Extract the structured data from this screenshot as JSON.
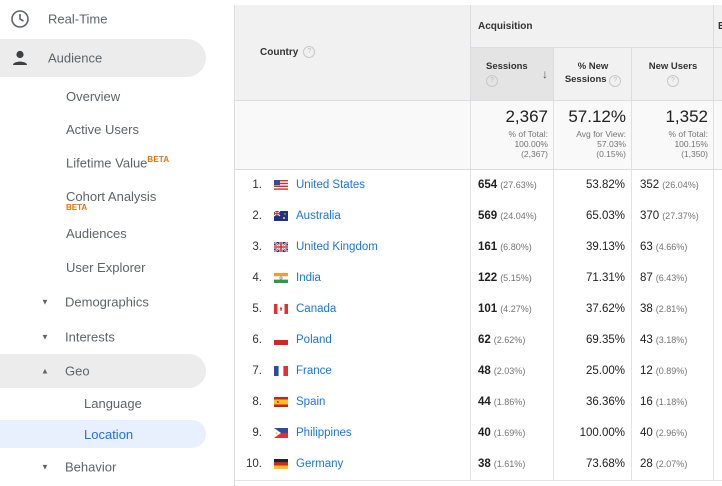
{
  "sidebar": {
    "realtime": "Real-Time",
    "audience": "Audience",
    "overview": "Overview",
    "active_users": "Active Users",
    "lifetime_value": "Lifetime Value",
    "beta": "BETA",
    "cohort": "Cohort Analysis",
    "audiences": "Audiences",
    "user_explorer": "User Explorer",
    "demographics": "Demographics",
    "interests": "Interests",
    "geo": "Geo",
    "language": "Language",
    "location": "Location",
    "behavior": "Behavior"
  },
  "table": {
    "country_header": "Country",
    "acquisition_header": "Acquisition",
    "edge_header": "B",
    "sessions_header": "Sessions",
    "new_sessions_header_1": "% New",
    "new_sessions_header_2": "Sessions",
    "new_users_header": "New Users",
    "totals": {
      "sessions": "2,367",
      "sessions_sub1": "% of Total:",
      "sessions_sub2": "100.00%",
      "sessions_sub3": "(2,367)",
      "new_sessions": "57.12%",
      "new_sessions_sub1": "Avg for View:",
      "new_sessions_sub2": "57.03%",
      "new_sessions_sub3": "(0.15%)",
      "new_users": "1,352",
      "new_users_sub1": "% of Total:",
      "new_users_sub2": "100.15%",
      "new_users_sub3": "(1,350)"
    },
    "rows": [
      {
        "idx": "1.",
        "country": "United States",
        "flag": "us",
        "sessions": "654",
        "sessions_pct": "(27.63%)",
        "new_sessions": "53.82%",
        "new_users": "352",
        "new_users_pct": "(26.04%)"
      },
      {
        "idx": "2.",
        "country": "Australia",
        "flag": "au",
        "sessions": "569",
        "sessions_pct": "(24.04%)",
        "new_sessions": "65.03%",
        "new_users": "370",
        "new_users_pct": "(27.37%)"
      },
      {
        "idx": "3.",
        "country": "United Kingdom",
        "flag": "gb",
        "sessions": "161",
        "sessions_pct": "(6.80%)",
        "new_sessions": "39.13%",
        "new_users": "63",
        "new_users_pct": "(4.66%)"
      },
      {
        "idx": "4.",
        "country": "India",
        "flag": "in",
        "sessions": "122",
        "sessions_pct": "(5.15%)",
        "new_sessions": "71.31%",
        "new_users": "87",
        "new_users_pct": "(6.43%)"
      },
      {
        "idx": "5.",
        "country": "Canada",
        "flag": "ca",
        "sessions": "101",
        "sessions_pct": "(4.27%)",
        "new_sessions": "37.62%",
        "new_users": "38",
        "new_users_pct": "(2.81%)"
      },
      {
        "idx": "6.",
        "country": "Poland",
        "flag": "pl",
        "sessions": "62",
        "sessions_pct": "(2.62%)",
        "new_sessions": "69.35%",
        "new_users": "43",
        "new_users_pct": "(3.18%)"
      },
      {
        "idx": "7.",
        "country": "France",
        "flag": "fr",
        "sessions": "48",
        "sessions_pct": "(2.03%)",
        "new_sessions": "25.00%",
        "new_users": "12",
        "new_users_pct": "(0.89%)"
      },
      {
        "idx": "8.",
        "country": "Spain",
        "flag": "es",
        "sessions": "44",
        "sessions_pct": "(1.86%)",
        "new_sessions": "36.36%",
        "new_users": "16",
        "new_users_pct": "(1.18%)"
      },
      {
        "idx": "9.",
        "country": "Philippines",
        "flag": "ph",
        "sessions": "40",
        "sessions_pct": "(1.69%)",
        "new_sessions": "100.00%",
        "new_users": "40",
        "new_users_pct": "(2.96%)"
      },
      {
        "idx": "10.",
        "country": "Germany",
        "flag": "de",
        "sessions": "38",
        "sessions_pct": "(1.61%)",
        "new_sessions": "73.68%",
        "new_users": "28",
        "new_users_pct": "(2.07%)"
      }
    ]
  },
  "colors": {
    "link": "#1a73e8",
    "beta": "#e8710a",
    "active_bg": "#e8f0fe"
  }
}
